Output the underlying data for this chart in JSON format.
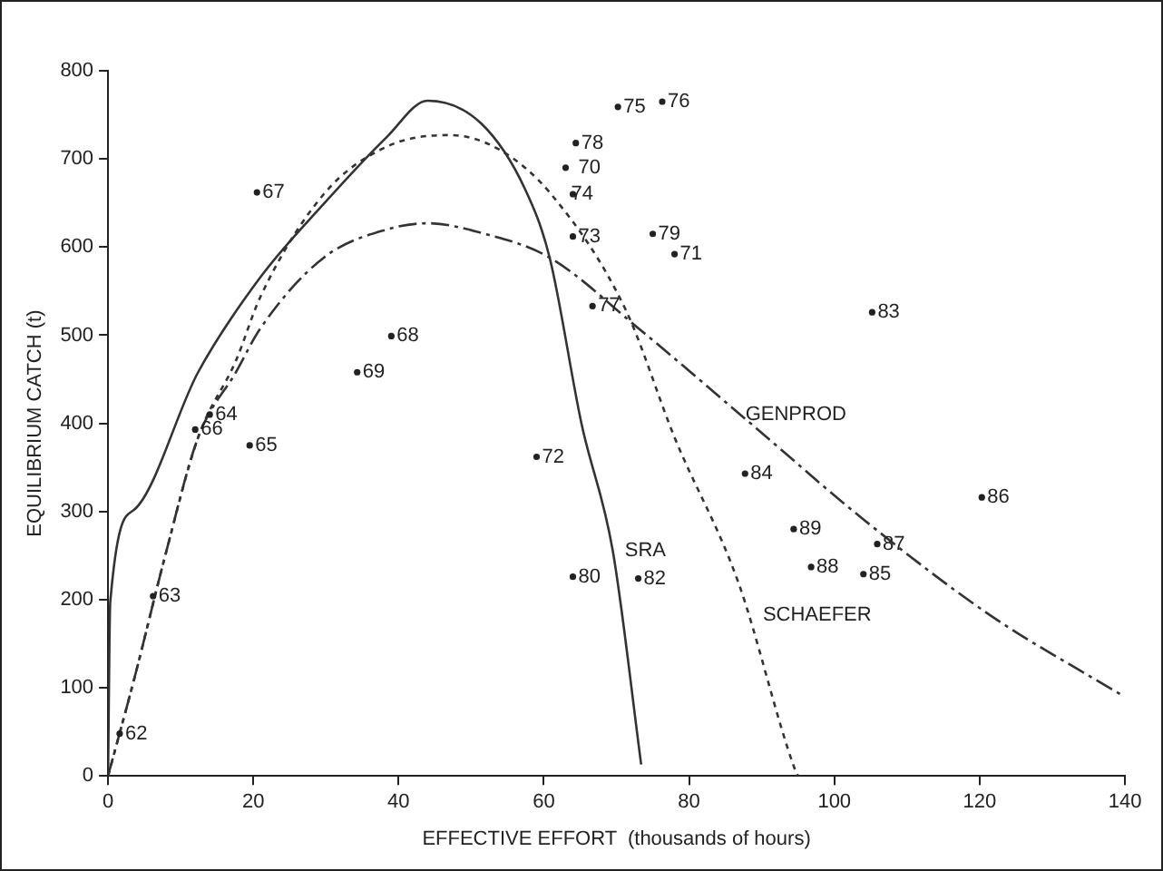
{
  "chart_data": {
    "type": "scatter",
    "xlabel": "EFFECTIVE EFFORT  (thousands of hours)",
    "ylabel": "EQUILIBRIUM CATCH (t)",
    "xlim": [
      0,
      140
    ],
    "xticks": [
      0,
      20,
      40,
      60,
      80,
      100,
      120,
      140
    ],
    "ylim": [
      0,
      800
    ],
    "yticks": [
      0,
      100,
      200,
      300,
      400,
      500,
      600,
      700,
      800
    ],
    "grid": false,
    "legend": false,
    "series": [
      {
        "type": "scatter",
        "color": "#222222",
        "marker": "circle",
        "x": [
          1.6,
          6.2,
          14,
          19.5,
          12,
          20.5,
          39,
          34.3,
          78,
          59,
          64,
          64,
          64.4,
          75,
          70.2,
          76.3,
          66.7,
          63,
          73,
          64,
          105.2,
          87.7,
          104,
          120.3,
          105.9,
          96.8,
          94.4
        ],
        "values": [
          48,
          204,
          410,
          375,
          393,
          662,
          499,
          458,
          592,
          362,
          612,
          660,
          718,
          615,
          759,
          765,
          533,
          690,
          224,
          226,
          526,
          343,
          229,
          316,
          263,
          237,
          280
        ]
      },
      {
        "type": "line",
        "color": "#333333",
        "line_style": "solid",
        "marker": "none",
        "x": [
          0,
          0.3,
          3.6,
          12.4,
          21,
          29.7,
          38.4,
          44,
          51.4,
          57.4,
          60.8,
          65.2,
          69.5,
          73.4
        ],
        "values": [
          0,
          197,
          302,
          458,
          566,
          649,
          725,
          766,
          740,
          666,
          588,
          399,
          255,
          13
        ]
      },
      {
        "type": "line",
        "color": "#333333",
        "line_style": "dotted",
        "marker": "none",
        "x": [
          0,
          3.6,
          8,
          12.4,
          17.6,
          21,
          29.7,
          38.4,
          47,
          54,
          61,
          71.2,
          78,
          86.8,
          94.5,
          95
        ],
        "values": [
          0,
          110,
          254,
          384,
          471,
          544,
          660,
          714,
          727,
          710,
          660,
          530,
          384,
          219,
          9,
          0
        ]
      },
      {
        "type": "line",
        "color": "#333333",
        "line_style": "dashed",
        "marker": "none",
        "x": [
          0,
          3.6,
          8,
          12.4,
          17.6,
          21,
          29.7,
          38.4,
          44,
          51.4,
          60.8,
          73,
          88.6,
          104,
          121.5,
          139.7
        ],
        "values": [
          0,
          110,
          254,
          384,
          458,
          508,
          588,
          620,
          627,
          616,
          588,
          508,
          399,
          291,
          182,
          91
        ]
      }
    ],
    "annotations": [
      {
        "text": "62",
        "x": 1.6,
        "y": 48
      },
      {
        "text": "63",
        "x": 6.2,
        "y": 204
      },
      {
        "text": "64",
        "x": 14,
        "y": 410
      },
      {
        "text": "65",
        "x": 19.5,
        "y": 375
      },
      {
        "text": "66",
        "x": 12,
        "y": 393
      },
      {
        "text": "67",
        "x": 20.5,
        "y": 662
      },
      {
        "text": "68",
        "x": 39,
        "y": 499
      },
      {
        "text": "69",
        "x": 34.3,
        "y": 458
      },
      {
        "text": "70",
        "x": 64,
        "y": 690
      },
      {
        "text": "71",
        "x": 78,
        "y": 592
      },
      {
        "text": "72",
        "x": 59,
        "y": 362
      },
      {
        "text": "73",
        "x": 64,
        "y": 612
      },
      {
        "text": "74",
        "x": 63,
        "y": 660
      },
      {
        "text": "75",
        "x": 70.2,
        "y": 759
      },
      {
        "text": "76",
        "x": 76.3,
        "y": 765
      },
      {
        "text": "77",
        "x": 66.7,
        "y": 533
      },
      {
        "text": "78",
        "x": 64.4,
        "y": 718
      },
      {
        "text": "79",
        "x": 75,
        "y": 615
      },
      {
        "text": "80",
        "x": 64,
        "y": 226
      },
      {
        "text": "82",
        "x": 73,
        "y": 224
      },
      {
        "text": "83",
        "x": 105.2,
        "y": 526
      },
      {
        "text": "84",
        "x": 87.7,
        "y": 343
      },
      {
        "text": "85",
        "x": 104,
        "y": 229
      },
      {
        "text": "86",
        "x": 120.3,
        "y": 316
      },
      {
        "text": "87",
        "x": 105.9,
        "y": 263
      },
      {
        "text": "88",
        "x": 96.8,
        "y": 237
      },
      {
        "text": "89",
        "x": 94.4,
        "y": 280
      },
      {
        "text": "SRA",
        "x": 70.4,
        "y": 256
      },
      {
        "text": "SCHAEFER",
        "x": 89.4,
        "y": 182
      },
      {
        "text": "GENPROD",
        "x": 87,
        "y": 410
      }
    ]
  }
}
